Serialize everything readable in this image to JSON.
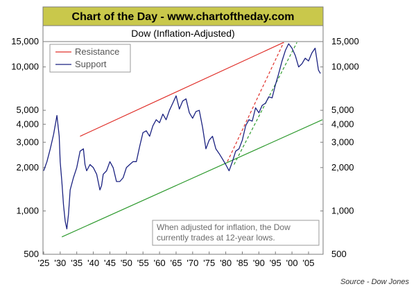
{
  "header": {
    "banner": "Chart of the Day - www.chartoftheday.com"
  },
  "colors": {
    "banner_bg": "#c9c84b",
    "resistance": "#e0302a",
    "support": "#2e9a2e",
    "series": "#1a2180",
    "dashed_red": "#e0302a",
    "dashed_green": "#2e9a2e"
  },
  "chart_data": {
    "type": "line",
    "title": "Dow (Inflation-Adjusted)",
    "xlabel": "",
    "ylabel": "",
    "yscale": "log",
    "xlim": [
      1924.8,
      2009.4
    ],
    "ylim": [
      500,
      15000
    ],
    "x_ticks": [
      "'25",
      "'30",
      "'35",
      "'40",
      "'45",
      "'50",
      "'55",
      "'60",
      "'65",
      "'70",
      "'75",
      "'80",
      "'85",
      "'90",
      "'95",
      "'00",
      "'05"
    ],
    "x_tick_years": [
      1925,
      1930,
      1935,
      1940,
      1945,
      1950,
      1955,
      1960,
      1965,
      1970,
      1975,
      1980,
      1985,
      1990,
      1995,
      2000,
      2005
    ],
    "y_tick_values": [
      500,
      1000,
      2000,
      3000,
      4000,
      5000,
      10000,
      15000
    ],
    "y_tick_labels": [
      "500",
      "1,000",
      "2,000",
      "3,000",
      "4,000",
      "5,000",
      "10,000",
      "15,000"
    ],
    "grid": false,
    "legend": {
      "position": "top-left",
      "entries": [
        "Resistance",
        "Support"
      ]
    },
    "series": [
      {
        "name": "Dow (Inflation-Adjusted)",
        "x": [
          1925,
          1926,
          1927,
          1928,
          1929,
          1929.7,
          1930,
          1930.5,
          1931,
          1931.5,
          1932,
          1932.5,
          1933,
          1934,
          1935,
          1936,
          1937,
          1937.5,
          1938,
          1939,
          1940,
          1941,
          1942,
          1942.5,
          1943,
          1944,
          1945,
          1946,
          1947,
          1948,
          1949,
          1950,
          1951,
          1952,
          1953,
          1954,
          1955,
          1956,
          1957,
          1958,
          1959,
          1960,
          1961,
          1962,
          1963,
          1964,
          1965,
          1966,
          1967,
          1968,
          1969,
          1970,
          1971,
          1972,
          1973,
          1974,
          1975,
          1976,
          1977,
          1978,
          1979,
          1980,
          1981,
          1982,
          1983,
          1984,
          1985,
          1986,
          1987,
          1988,
          1989,
          1990,
          1991,
          1992,
          1993,
          1994,
          1995,
          1996,
          1997,
          1998,
          1999,
          2000,
          2001,
          2002,
          2003,
          2004,
          2005,
          2006,
          2007,
          2008,
          2008.6
        ],
        "y": [
          1900,
          2200,
          2700,
          3400,
          4600,
          3300,
          2200,
          1600,
          1100,
          850,
          750,
          950,
          1400,
          1700,
          2000,
          2600,
          2700,
          2100,
          1900,
          2100,
          2000,
          1800,
          1400,
          1500,
          1800,
          1900,
          2200,
          2000,
          1600,
          1600,
          1700,
          2000,
          2100,
          2200,
          2200,
          2800,
          3500,
          3600,
          3300,
          3900,
          4300,
          4100,
          4700,
          4300,
          5000,
          5600,
          6300,
          5100,
          5800,
          6000,
          4800,
          4400,
          4900,
          5000,
          3800,
          2700,
          3100,
          3300,
          2700,
          2500,
          2300,
          2100,
          1900,
          2200,
          2600,
          2700,
          3100,
          3900,
          4300,
          4200,
          5200,
          4800,
          5400,
          5600,
          6200,
          6100,
          7500,
          9000,
          11000,
          13000,
          14500,
          13500,
          12000,
          10000,
          10500,
          11500,
          11000,
          12500,
          13500,
          9500,
          9000
        ]
      }
    ],
    "trendlines": [
      {
        "name": "Resistance",
        "x": [
          1936,
          1997.5
        ],
        "y": [
          3300,
          14800
        ]
      },
      {
        "name": "Support",
        "x": [
          1930.5,
          2009.2
        ],
        "y": [
          660,
          4300
        ]
      },
      {
        "name": "dashed-red",
        "x": [
          1980.5,
          1997.5
        ],
        "y": [
          2200,
          14800
        ]
      },
      {
        "name": "dashed-green",
        "x": [
          1982.5,
          2001.5
        ],
        "y": [
          2100,
          14800
        ]
      }
    ],
    "annotations": [
      "When adjusted for inflation, the Dow",
      "currently trades at 12-year lows."
    ]
  },
  "footer": {
    "source": "Source - Dow Jones"
  }
}
